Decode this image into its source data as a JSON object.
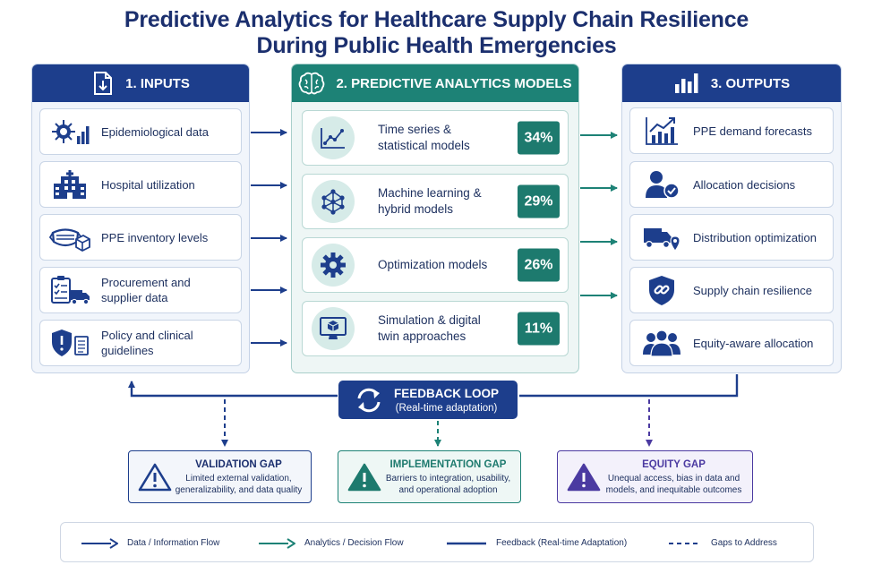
{
  "title": {
    "line1": "Predictive Analytics for Healthcare Supply Chain Resilience",
    "line2": "During Public Health Emergencies"
  },
  "panels": {
    "inputs": {
      "title": "1. INPUTS",
      "icon": "document-download-icon",
      "items": [
        {
          "label": "Epidemiological data",
          "icon": "virus-chart-icon"
        },
        {
          "label": "Hospital utilization",
          "icon": "hospital-icon"
        },
        {
          "label": "PPE inventory levels",
          "icon": "mask-box-icon"
        },
        {
          "label": "Procurement and supplier data",
          "icon": "clipboard-truck-icon"
        },
        {
          "label": "Policy and clinical guidelines",
          "icon": "shield-document-icon"
        }
      ]
    },
    "models": {
      "title": "2. PREDICTIVE ANALYTICS MODELS",
      "icon": "brain-icon",
      "items": [
        {
          "label": "Time series & statistical models",
          "percent": "34%",
          "icon": "line-chart-icon"
        },
        {
          "label": "Machine learning & hybrid models",
          "percent": "29%",
          "icon": "network-icon"
        },
        {
          "label": "Optimization models",
          "percent": "26%",
          "icon": "gear-icon"
        },
        {
          "label": "Simulation & digital twin approaches",
          "percent": "11%",
          "icon": "monitor-cube-icon"
        }
      ]
    },
    "outputs": {
      "title": "3. OUTPUTS",
      "icon": "bar-chart-icon",
      "items": [
        {
          "label": "PPE demand forecasts",
          "icon": "trend-chart-icon"
        },
        {
          "label": "Allocation decisions",
          "icon": "user-check-icon"
        },
        {
          "label": "Distribution optimization",
          "icon": "truck-pin-icon"
        },
        {
          "label": "Supply chain resilience",
          "icon": "shield-link-icon"
        },
        {
          "label": "Equity-aware allocation",
          "icon": "group-icon"
        }
      ]
    }
  },
  "feedback": {
    "title": "FEEDBACK LOOP",
    "subtitle": "(Real-time adaptation)",
    "icon": "refresh-icon"
  },
  "gaps": [
    {
      "title": "VALIDATION GAP",
      "description": "Limited external validation, generalizability, and data quality",
      "icon": "warning-icon"
    },
    {
      "title": "IMPLEMENTATION GAP",
      "description": "Barriers to integration, usability, and operational adoption",
      "icon": "warning-icon"
    },
    {
      "title": "EQUITY GAP",
      "description": "Unequal access, bias in data and models, and inequitable outcomes",
      "icon": "warning-icon"
    }
  ],
  "legend": [
    {
      "label": "Data / Information Flow"
    },
    {
      "label": "Analytics / Decision Flow"
    },
    {
      "label": "Feedback (Real-time Adaptation)"
    },
    {
      "label": "Gaps to Address"
    }
  ],
  "colors": {
    "navy": "#1d3e8c",
    "teal": "#1d8276",
    "purple": "#4b3aa1"
  }
}
